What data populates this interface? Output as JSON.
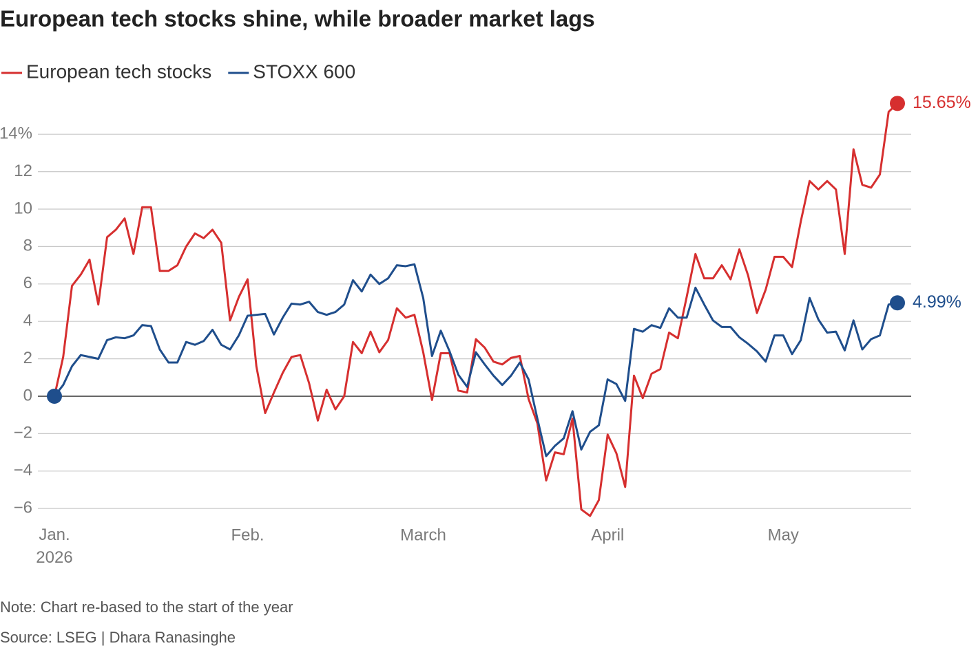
{
  "chart_data": {
    "type": "line",
    "title": "European tech stocks shine, while broader market lags",
    "note": "Note: Chart re-based to the start of the year",
    "source": "Source: LSEG | Dhara Ranasinghe",
    "categories": [
      "Jan.\n2026",
      null,
      null,
      null,
      null,
      null,
      null,
      null,
      null,
      null,
      null,
      null,
      null,
      null,
      null,
      null,
      null,
      null,
      null,
      null,
      null,
      null,
      "Feb.",
      null,
      null,
      null,
      null,
      null,
      null,
      null,
      null,
      null,
      null,
      null,
      null,
      null,
      null,
      null,
      null,
      null,
      null,
      null,
      "March",
      null,
      null,
      null,
      null,
      null,
      null,
      null,
      null,
      null,
      null,
      null,
      null,
      null,
      null,
      null,
      null,
      null,
      null,
      null,
      null,
      "April",
      null,
      null,
      null,
      null,
      null,
      null,
      null,
      null,
      null,
      null,
      null,
      null,
      null,
      null,
      null,
      null,
      null,
      null,
      null,
      "May",
      null,
      null,
      null,
      null,
      null,
      null,
      null,
      null,
      null,
      null,
      null,
      null,
      null
    ],
    "series": [
      {
        "name": "European tech stocks",
        "color": "#d62f2f",
        "values": [
          0,
          2.1,
          5.9,
          6.5,
          7.3,
          4.9,
          8.5,
          8.9,
          9.5,
          7.6,
          10.1,
          10.1,
          6.7,
          6.7,
          7.0,
          8.0,
          8.7,
          8.45,
          8.9,
          8.2,
          4.05,
          5.3,
          6.25,
          1.6,
          -0.9,
          0.2,
          1.25,
          2.1,
          2.2,
          0.7,
          -1.3,
          0.35,
          -0.7,
          0,
          2.9,
          2.3,
          3.45,
          2.35,
          3.0,
          4.7,
          4.2,
          4.35,
          2.35,
          -0.2,
          2.3,
          2.3,
          0.3,
          0.2,
          3.05,
          2.6,
          1.85,
          1.7,
          2.05,
          2.15,
          -0.15,
          -1.45,
          -4.5,
          -3.0,
          -3.1,
          -1.2,
          -6.05,
          -6.4,
          -5.55,
          -2.05,
          -3.05,
          -4.85,
          1.1,
          -0.1,
          1.2,
          1.45,
          3.4,
          3.1,
          5.3,
          7.6,
          6.3,
          6.3,
          7.0,
          6.25,
          7.85,
          6.45,
          4.45,
          5.7,
          7.45,
          7.45,
          6.9,
          9.35,
          11.5,
          11.05,
          11.5,
          11.05,
          7.6,
          13.2,
          11.3,
          11.15,
          11.85,
          15.2,
          15.65
        ],
        "value_labels": [
          null,
          null,
          null,
          null,
          null,
          null,
          null,
          null,
          null,
          null,
          null,
          null,
          null,
          null,
          null,
          null,
          null,
          null,
          null,
          null,
          null,
          null,
          null,
          null,
          null,
          null,
          null,
          null,
          null,
          null,
          null,
          null,
          null,
          null,
          null,
          null,
          null,
          null,
          null,
          null,
          null,
          null,
          null,
          null,
          null,
          null,
          null,
          null,
          null,
          null,
          null,
          null,
          null,
          null,
          null,
          null,
          null,
          null,
          null,
          null,
          null,
          null,
          null,
          null,
          null,
          null,
          null,
          null,
          null,
          null,
          null,
          null,
          null,
          null,
          null,
          null,
          null,
          null,
          null,
          null,
          null,
          null,
          null,
          null,
          null,
          null,
          null,
          null,
          null,
          null,
          null,
          null,
          null,
          null,
          null,
          null,
          "15.65%"
        ]
      },
      {
        "name": "STOXX 600",
        "color": "#1f4e8c",
        "values": [
          0,
          0.6,
          1.6,
          2.2,
          2.1,
          2.0,
          3.0,
          3.15,
          3.1,
          3.25,
          3.8,
          3.75,
          2.5,
          1.8,
          1.8,
          2.9,
          2.75,
          2.95,
          3.55,
          2.75,
          2.5,
          3.25,
          4.3,
          4.35,
          4.4,
          3.3,
          4.2,
          4.95,
          4.9,
          5.05,
          4.5,
          4.35,
          4.5,
          4.9,
          6.2,
          5.6,
          6.5,
          6.0,
          6.3,
          7.0,
          6.95,
          7.05,
          5.25,
          2.15,
          3.5,
          2.4,
          1.15,
          0.5,
          2.35,
          1.7,
          1.1,
          0.6,
          1.1,
          1.8,
          0.9,
          -1.2,
          -3.2,
          -2.65,
          -2.25,
          -0.8,
          -2.85,
          -1.9,
          -1.55,
          0.9,
          0.65,
          -0.25,
          3.6,
          3.45,
          3.8,
          3.65,
          4.7,
          4.2,
          4.2,
          5.8,
          4.9,
          4.05,
          3.7,
          3.7,
          3.15,
          2.8,
          2.4,
          1.85,
          3.25,
          3.25,
          2.25,
          3.0,
          5.25,
          4.1,
          3.4,
          3.45,
          2.45,
          4.05,
          2.5,
          3.05,
          3.25,
          4.9,
          4.99
        ],
        "value_labels": [
          null,
          null,
          null,
          null,
          null,
          null,
          null,
          null,
          null,
          null,
          null,
          null,
          null,
          null,
          null,
          null,
          null,
          null,
          null,
          null,
          null,
          null,
          null,
          null,
          null,
          null,
          null,
          null,
          null,
          null,
          null,
          null,
          null,
          null,
          null,
          null,
          null,
          null,
          null,
          null,
          null,
          null,
          null,
          null,
          null,
          null,
          null,
          null,
          null,
          null,
          null,
          null,
          null,
          null,
          null,
          null,
          null,
          null,
          null,
          null,
          null,
          null,
          null,
          null,
          null,
          null,
          null,
          null,
          null,
          null,
          null,
          null,
          null,
          null,
          null,
          null,
          null,
          null,
          null,
          null,
          null,
          null,
          null,
          null,
          null,
          null,
          null,
          null,
          null,
          null,
          null,
          null,
          null,
          null,
          null,
          null,
          "4.99%"
        ]
      }
    ],
    "ylim": [
      -6.6,
      16
    ],
    "yticks": [
      {
        "value": -6,
        "label": "−6"
      },
      {
        "value": -4,
        "label": "−4"
      },
      {
        "value": -2,
        "label": "−2"
      },
      0,
      2,
      4,
      6,
      8,
      10,
      12,
      {
        "value": 14,
        "label": "14%"
      }
    ],
    "grid": true
  }
}
